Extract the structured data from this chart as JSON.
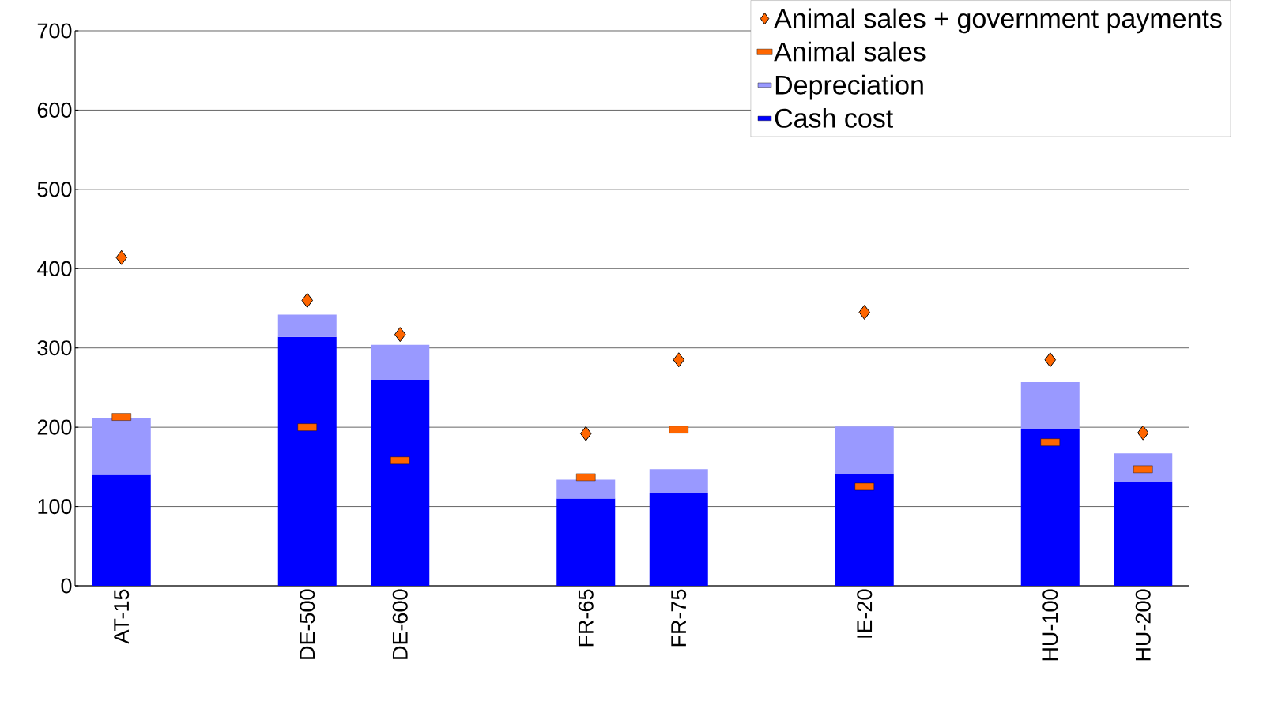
{
  "chart_data": {
    "type": "bar",
    "stacked": true,
    "categories": [
      "AT-15",
      null,
      "DE-500",
      "DE-600",
      null,
      "FR-65",
      "FR-75",
      null,
      "IE-20",
      null,
      "HU-100",
      "HU-200"
    ],
    "series": [
      {
        "name": "Cash cost",
        "color": "#0000ff",
        "values": [
          140,
          null,
          314,
          260,
          null,
          110,
          117,
          null,
          141,
          null,
          198,
          131
        ]
      },
      {
        "name": "Depreciation",
        "color": "#9999ff",
        "values": [
          72,
          null,
          28,
          44,
          null,
          24,
          30,
          null,
          60,
          null,
          59,
          36
        ]
      },
      {
        "name": "Animal sales",
        "type": "scatter",
        "marker": "square",
        "color": "#ff6600",
        "values": [
          213,
          null,
          200,
          158,
          null,
          137,
          197,
          null,
          125,
          null,
          181,
          147
        ]
      },
      {
        "name": "Animal sales + government payments",
        "type": "scatter",
        "marker": "diamond",
        "color": "#ff6600",
        "values": [
          414,
          null,
          360,
          317,
          null,
          192,
          285,
          null,
          345,
          null,
          285,
          193
        ]
      }
    ],
    "ylim": [
      0,
      700
    ],
    "yticks": [
      0,
      100,
      200,
      300,
      400,
      500,
      600,
      700
    ],
    "grid": "y",
    "legend": "top right"
  }
}
